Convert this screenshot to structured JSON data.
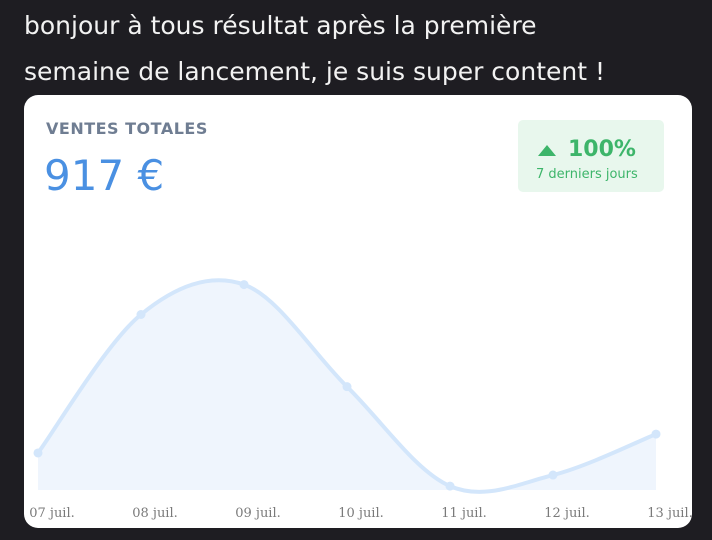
{
  "post": {
    "text_lines": [
      "bonjour à tous résultat après la première",
      "semaine de lancement, je suis super content !"
    ]
  },
  "card": {
    "label": "VENTES TOTALES",
    "total": "917 €",
    "badge": {
      "change": "100%",
      "period": "7 derniers jours"
    }
  },
  "chart_data": {
    "type": "line",
    "categories": [
      "07 juil.",
      "08 juil.",
      "09 juil.",
      "10 juil.",
      "11 juil.",
      "12 juil.",
      "13 juil."
    ],
    "values": [
      57,
      270,
      316,
      159,
      6,
      23,
      86
    ],
    "color": "#d3e6fb",
    "fill": "#eff5fd",
    "ylim": [
      0,
      400
    ]
  }
}
